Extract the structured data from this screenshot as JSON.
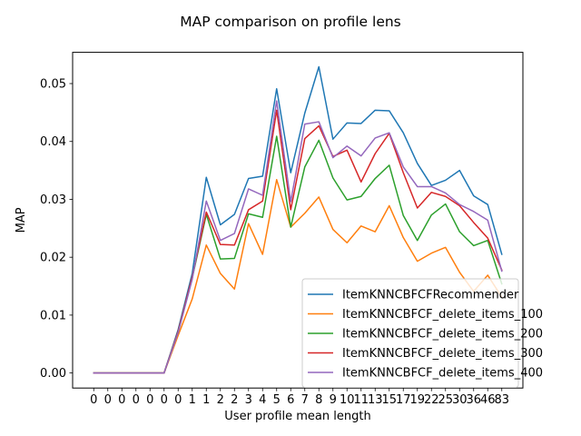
{
  "chart_data": {
    "type": "line",
    "title": "MAP comparison on profile lens",
    "xlabel": "User profile mean length",
    "ylabel": "MAP",
    "categories": [
      "0",
      "0",
      "0",
      "0",
      "0",
      "0",
      "0",
      "1",
      "1",
      "2",
      "2",
      "3",
      "4",
      "5",
      "6",
      "7",
      "8",
      "9",
      "10",
      "11",
      "13",
      "15",
      "17",
      "19",
      "22",
      "25",
      "30",
      "36",
      "46",
      "83"
    ],
    "ylim": [
      -0.0026,
      0.0554
    ],
    "yticks": [
      0.0,
      0.01,
      0.02,
      0.03,
      0.04,
      0.05
    ],
    "ytick_labels": [
      "0.00",
      "0.01",
      "0.02",
      "0.03",
      "0.04",
      "0.05"
    ],
    "grid": false,
    "legend_position": "lower-right",
    "series": [
      {
        "name": "ItemKNNCBFCFRecommender",
        "color": "#1f77b4",
        "values": [
          0.0,
          0.0,
          0.0,
          0.0,
          0.0,
          0.0,
          0.0075,
          0.0172,
          0.0338,
          0.0256,
          0.0274,
          0.0336,
          0.034,
          0.0491,
          0.0346,
          0.0449,
          0.0529,
          0.0404,
          0.0432,
          0.0431,
          0.0454,
          0.0453,
          0.0415,
          0.0362,
          0.0324,
          0.0333,
          0.035,
          0.0306,
          0.0291,
          0.0205
        ]
      },
      {
        "name": "ItemKNNCBFCF_delete_items_100",
        "color": "#ff7f0e",
        "values": [
          0.0,
          0.0,
          0.0,
          0.0,
          0.0,
          0.0,
          0.0065,
          0.0128,
          0.0221,
          0.0172,
          0.0145,
          0.0258,
          0.0205,
          0.0334,
          0.0252,
          0.0276,
          0.0304,
          0.0248,
          0.0225,
          0.0254,
          0.0244,
          0.0289,
          0.0234,
          0.0193,
          0.0207,
          0.0217,
          0.0174,
          0.0141,
          0.0169,
          0.0131
        ]
      },
      {
        "name": "ItemKNNCBFCF_delete_items_200",
        "color": "#2ca02c",
        "values": [
          0.0,
          0.0,
          0.0,
          0.0,
          0.0,
          0.0,
          0.0072,
          0.0164,
          0.0274,
          0.0197,
          0.0198,
          0.0275,
          0.0269,
          0.0409,
          0.0252,
          0.0356,
          0.0402,
          0.0337,
          0.0299,
          0.0305,
          0.0336,
          0.0359,
          0.0272,
          0.0229,
          0.0273,
          0.0292,
          0.0244,
          0.022,
          0.0229,
          0.0154
        ]
      },
      {
        "name": "ItemKNNCBFCF_delete_items_300",
        "color": "#d62728",
        "values": [
          0.0,
          0.0,
          0.0,
          0.0,
          0.0,
          0.0,
          0.0072,
          0.0166,
          0.0278,
          0.0222,
          0.0221,
          0.0282,
          0.0297,
          0.0454,
          0.0282,
          0.0405,
          0.0427,
          0.0374,
          0.0385,
          0.033,
          0.0379,
          0.0414,
          0.0346,
          0.0285,
          0.0312,
          0.0305,
          0.0289,
          0.026,
          0.0233,
          0.0178
        ]
      },
      {
        "name": "ItemKNNCBFCF_delete_items_400",
        "color": "#9467bd",
        "values": [
          0.0,
          0.0,
          0.0,
          0.0,
          0.0,
          0.0,
          0.007,
          0.0162,
          0.0297,
          0.0229,
          0.0241,
          0.0318,
          0.0307,
          0.047,
          0.0296,
          0.043,
          0.0434,
          0.0372,
          0.0392,
          0.0375,
          0.0406,
          0.0415,
          0.0356,
          0.0322,
          0.0322,
          0.0311,
          0.0291,
          0.0279,
          0.0264,
          0.0176
        ]
      }
    ]
  }
}
